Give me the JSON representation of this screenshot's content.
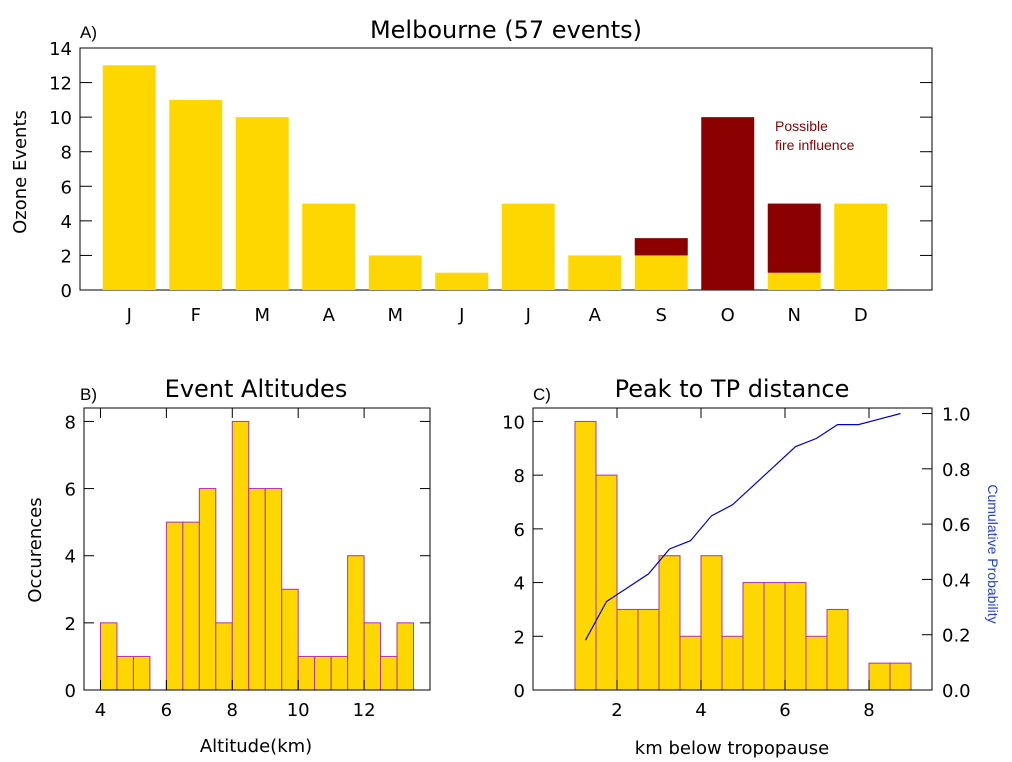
{
  "colors": {
    "bar_fill": "#FFD700",
    "fire_fill": "#8B0000",
    "hist_edge": "#B030B0",
    "cum_line": "#0000CC",
    "fire_text": "#8B0000",
    "cum_axis_text": "#2040E0"
  },
  "chart_data": [
    {
      "id": "A",
      "type": "bar",
      "letter": "A)",
      "title": "Melbourne (57 events)",
      "ylabel": "Ozone Events",
      "xlabel": "",
      "ylim": [
        0,
        14
      ],
      "yticks": [
        "0",
        "2",
        "4",
        "6",
        "8",
        "10",
        "12",
        "14"
      ],
      "categories": [
        "J",
        "F",
        "M",
        "A",
        "M",
        "J",
        "J",
        "A",
        "S",
        "O",
        "N",
        "D"
      ],
      "series": [
        {
          "name": "Ozone events",
          "values": [
            13,
            11,
            10,
            5,
            2,
            1,
            5,
            2,
            2,
            0,
            1,
            5
          ]
        },
        {
          "name": "Possible fire influence",
          "values": [
            0,
            0,
            0,
            0,
            0,
            0,
            0,
            0,
            1,
            10,
            4,
            0
          ]
        }
      ],
      "annotation": [
        "Possible",
        "fire influence"
      ]
    },
    {
      "id": "B",
      "type": "bar",
      "letter": "B)",
      "title": "Event Altitudes",
      "xlabel": "Altitude(km)",
      "ylabel": "Occurences",
      "xlim": [
        3.5,
        14
      ],
      "ylim": [
        0,
        8.4
      ],
      "xticks": [
        "4",
        "6",
        "8",
        "10",
        "12"
      ],
      "yticks": [
        "0",
        "2",
        "4",
        "6",
        "8"
      ],
      "bin_width": 0.5,
      "bin_starts": [
        4,
        4.5,
        5,
        5.5,
        6,
        6.5,
        7,
        7.5,
        8,
        8.5,
        9,
        9.5,
        10,
        10.5,
        11,
        11.5,
        12,
        12.5,
        13
      ],
      "values": [
        2,
        1,
        1,
        0,
        5,
        5,
        6,
        2,
        8,
        6,
        6,
        3,
        1,
        1,
        1,
        4,
        2,
        1,
        2
      ]
    },
    {
      "id": "C",
      "type": "bar",
      "letter": "C)",
      "title": "Peak to TP distance",
      "xlabel": "km below tropopause",
      "ylabel": "",
      "y2label": "Cumulative Probability",
      "xlim": [
        0,
        9.5
      ],
      "ylim": [
        0,
        10.5
      ],
      "y2lim": [
        0,
        1.02
      ],
      "xticks": [
        "2",
        "4",
        "6",
        "8"
      ],
      "yticks": [
        "0",
        "2",
        "4",
        "6",
        "8",
        "10"
      ],
      "y2ticks": [
        "0.0",
        "0.2",
        "0.4",
        "0.6",
        "0.8",
        "1.0"
      ],
      "bin_width": 0.5,
      "bin_starts": [
        1,
        1.5,
        2,
        2.5,
        3,
        3.5,
        4,
        4.5,
        5,
        5.5,
        6,
        6.5,
        7,
        7.5,
        8,
        8.5
      ],
      "values": [
        10,
        8,
        3,
        3,
        5,
        2,
        5,
        2,
        4,
        4,
        4,
        2,
        3,
        0,
        1,
        1
      ],
      "cumulative": {
        "x": [
          1.25,
          1.75,
          2.25,
          2.75,
          3.25,
          3.75,
          4.25,
          4.75,
          5.25,
          5.75,
          6.25,
          6.75,
          7.25,
          7.75,
          8.25,
          8.75
        ],
        "y": [
          0.18,
          0.32,
          0.37,
          0.42,
          0.51,
          0.54,
          0.63,
          0.67,
          0.74,
          0.81,
          0.88,
          0.91,
          0.96,
          0.96,
          0.98,
          1.0
        ]
      }
    }
  ]
}
